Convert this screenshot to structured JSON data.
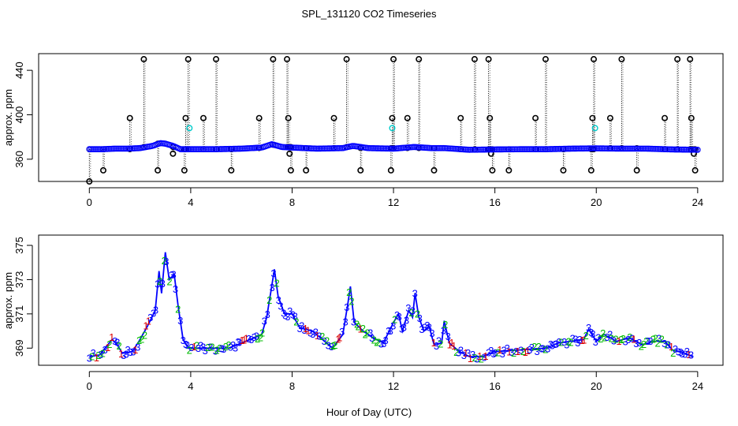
{
  "figure": {
    "title": "SPL_131120  CO2 Timeseries",
    "xlabel": "Hour of Day (UTC)"
  },
  "chart_data": [
    {
      "type": "scatter",
      "name": "raw",
      "ylabel": "approx. ppm",
      "xlim": [
        -2.0,
        25.0
      ],
      "ylim": [
        340,
        455
      ],
      "xticks": [
        0,
        4,
        8,
        12,
        16,
        20,
        24
      ],
      "yticks": [
        360,
        400,
        440
      ],
      "colors": {
        "series": "#0000ff",
        "outlier": "#000000",
        "cyan": "#00cccc",
        "spike": "#000000"
      },
      "baseline": [
        [
          0.0,
          369
        ],
        [
          0.5,
          369
        ],
        [
          1.0,
          369.5
        ],
        [
          1.5,
          369.5
        ],
        [
          2.0,
          370
        ],
        [
          2.5,
          372
        ],
        [
          2.8,
          374.5
        ],
        [
          3.0,
          374
        ],
        [
          3.3,
          372
        ],
        [
          3.6,
          369
        ],
        [
          4.0,
          369
        ],
        [
          5.0,
          369
        ],
        [
          6.0,
          369.5
        ],
        [
          6.8,
          370.5
        ],
        [
          7.2,
          373.5
        ],
        [
          7.6,
          371
        ],
        [
          8.0,
          370.5
        ],
        [
          9.0,
          369.5
        ],
        [
          10.0,
          370
        ],
        [
          10.4,
          372
        ],
        [
          11.0,
          370
        ],
        [
          12.0,
          369.5
        ],
        [
          12.8,
          371
        ],
        [
          13.5,
          370
        ],
        [
          14.0,
          370
        ],
        [
          15.0,
          368.5
        ],
        [
          16.0,
          368.8
        ],
        [
          17.0,
          369
        ],
        [
          18.0,
          369
        ],
        [
          19.0,
          369.5
        ],
        [
          20.0,
          369.8
        ],
        [
          21.0,
          369.5
        ],
        [
          22.0,
          369.5
        ],
        [
          23.0,
          368.8
        ],
        [
          24.0,
          368.5
        ]
      ],
      "spikes": [
        [
          0.0,
          369,
          340
        ],
        [
          0.55,
          369,
          350
        ],
        [
          1.6,
          369,
          397
        ],
        [
          2.15,
          371,
          450
        ],
        [
          2.7,
          374,
          350
        ],
        [
          3.3,
          371,
          365
        ],
        [
          3.75,
          369,
          350
        ],
        [
          3.8,
          369,
          397
        ],
        [
          3.9,
          369,
          450
        ],
        [
          4.5,
          369,
          397
        ],
        [
          5.0,
          369,
          450
        ],
        [
          5.6,
          369,
          350
        ],
        [
          6.7,
          370,
          397
        ],
        [
          7.25,
          373,
          450
        ],
        [
          7.8,
          371,
          450
        ],
        [
          7.85,
          371,
          397
        ],
        [
          7.9,
          371,
          365
        ],
        [
          7.95,
          371,
          350
        ],
        [
          8.55,
          370,
          350
        ],
        [
          9.65,
          370,
          397
        ],
        [
          10.15,
          371,
          450
        ],
        [
          10.7,
          370,
          350
        ],
        [
          11.9,
          370,
          350
        ],
        [
          11.95,
          370,
          397
        ],
        [
          12.0,
          370,
          450
        ],
        [
          12.55,
          370,
          397
        ],
        [
          13.0,
          370,
          450
        ],
        [
          13.6,
          370,
          350
        ],
        [
          14.65,
          369,
          397
        ],
        [
          15.2,
          369,
          450
        ],
        [
          15.75,
          369,
          450
        ],
        [
          15.8,
          369,
          397
        ],
        [
          15.85,
          369,
          365
        ],
        [
          15.9,
          369,
          350
        ],
        [
          16.55,
          369,
          350
        ],
        [
          17.6,
          369,
          397
        ],
        [
          18.0,
          369,
          450
        ],
        [
          18.7,
          369,
          350
        ],
        [
          19.8,
          369,
          350
        ],
        [
          19.85,
          369,
          397
        ],
        [
          19.9,
          369,
          450
        ],
        [
          20.55,
          370,
          397
        ],
        [
          21.0,
          370,
          450
        ],
        [
          21.6,
          370,
          350
        ],
        [
          22.7,
          369,
          397
        ],
        [
          23.2,
          369,
          450
        ],
        [
          23.7,
          369,
          450
        ],
        [
          23.75,
          369,
          397
        ],
        [
          23.85,
          369,
          365
        ],
        [
          23.9,
          369,
          350
        ]
      ],
      "cyan_points": [
        [
          3.95,
          388
        ],
        [
          11.95,
          388
        ],
        [
          19.95,
          388
        ]
      ]
    },
    {
      "type": "scatter",
      "name": "labeled",
      "ylabel": "approx. ppm",
      "xlim": [
        -2.0,
        25.0
      ],
      "ylim": [
        368.0,
        375.6
      ],
      "xticks": [
        0,
        4,
        8,
        12,
        16,
        20,
        24
      ],
      "yticks": [
        369,
        371,
        373,
        375
      ],
      "colors": {
        "line": "#0000ff",
        "one": "#dd0000",
        "two": "#00bb00",
        "three": "#0000ff"
      },
      "labels": [
        "1",
        "2",
        "3"
      ],
      "profile": [
        [
          0.0,
          368.5
        ],
        [
          0.4,
          368.6
        ],
        [
          0.9,
          369.5
        ],
        [
          1.1,
          369.2
        ],
        [
          1.3,
          368.7
        ],
        [
          1.7,
          368.8
        ],
        [
          2.0,
          369.5
        ],
        [
          2.3,
          370.3
        ],
        [
          2.6,
          371.2
        ],
        [
          2.75,
          373.5
        ],
        [
          2.85,
          372.2
        ],
        [
          3.0,
          374.6
        ],
        [
          3.15,
          373
        ],
        [
          3.35,
          373.3
        ],
        [
          3.5,
          371.5
        ],
        [
          3.7,
          369.5
        ],
        [
          3.9,
          369
        ],
        [
          4.5,
          369
        ],
        [
          5.0,
          369
        ],
        [
          5.5,
          369
        ],
        [
          6.0,
          369.3
        ],
        [
          6.5,
          369.6
        ],
        [
          6.8,
          369.8
        ],
        [
          7.0,
          370.8
        ],
        [
          7.15,
          372.2
        ],
        [
          7.3,
          373.6
        ],
        [
          7.45,
          372
        ],
        [
          7.7,
          371
        ],
        [
          8.0,
          371
        ],
        [
          8.3,
          370.2
        ],
        [
          8.8,
          370
        ],
        [
          9.2,
          369.5
        ],
        [
          9.6,
          369
        ],
        [
          10.0,
          369.8
        ],
        [
          10.2,
          371.6
        ],
        [
          10.3,
          372.6
        ],
        [
          10.45,
          370.5
        ],
        [
          10.8,
          370
        ],
        [
          11.2,
          369.6
        ],
        [
          11.6,
          369.3
        ],
        [
          12.0,
          370.5
        ],
        [
          12.2,
          371
        ],
        [
          12.35,
          370
        ],
        [
          12.6,
          371.2
        ],
        [
          12.75,
          370.8
        ],
        [
          12.85,
          372.2
        ],
        [
          13.0,
          370.8
        ],
        [
          13.2,
          370
        ],
        [
          13.4,
          370.3
        ],
        [
          13.6,
          369.2
        ],
        [
          13.9,
          369.3
        ],
        [
          14.0,
          370.6
        ],
        [
          14.2,
          369.3
        ],
        [
          14.6,
          368.8
        ],
        [
          15.0,
          368.5
        ],
        [
          15.5,
          368.5
        ],
        [
          16.0,
          368.8
        ],
        [
          17.0,
          368.9
        ],
        [
          18.0,
          369
        ],
        [
          18.5,
          369.3
        ],
        [
          19.0,
          369.4
        ],
        [
          19.5,
          369.5
        ],
        [
          19.7,
          370.1
        ],
        [
          20.0,
          369.4
        ],
        [
          20.3,
          369.8
        ],
        [
          20.8,
          369.4
        ],
        [
          21.3,
          369.6
        ],
        [
          21.8,
          369.2
        ],
        [
          22.3,
          369.4
        ],
        [
          22.7,
          369.4
        ],
        [
          23.0,
          368.9
        ],
        [
          23.5,
          368.7
        ],
        [
          23.8,
          368.5
        ]
      ]
    }
  ]
}
